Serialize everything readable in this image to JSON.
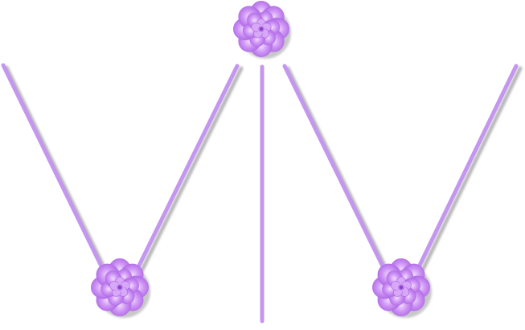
{
  "colors": {
    "background": "#ffffff",
    "stick": "#c596f0",
    "stick_shadow": "#b3b3b3",
    "flower_outer": "#b06ae6",
    "flower_mid": "#c88af2",
    "flower_inner": "#e4c4fb",
    "flower_center": "#9a52d6"
  },
  "elements": {
    "sticks": [
      {
        "name": "stick-left-v-left-arm"
      },
      {
        "name": "stick-left-v-right-arm"
      },
      {
        "name": "stick-center-vertical"
      },
      {
        "name": "stick-right-v-left-arm"
      },
      {
        "name": "stick-right-v-right-arm"
      }
    ],
    "flowers": [
      {
        "name": "flower-top-center",
        "icon": "purple-flower-icon"
      },
      {
        "name": "flower-bottom-left",
        "icon": "purple-flower-icon"
      },
      {
        "name": "flower-bottom-right",
        "icon": "purple-flower-icon"
      }
    ]
  }
}
